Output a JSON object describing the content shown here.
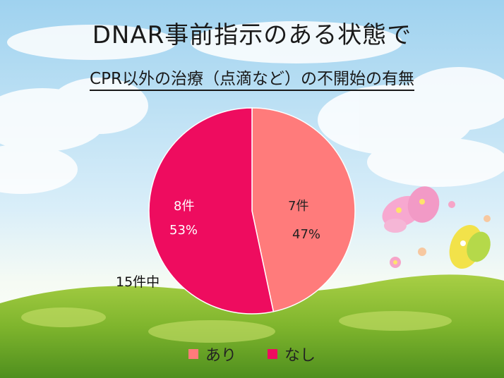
{
  "title": "DNAR事前指示のある状態で",
  "subtitle": "CPR以外の治療（点滴など）の不開始の有無",
  "total_note": "15件中",
  "colors": {
    "ari": "#ff7b7b",
    "nashi": "#ee0c5f"
  },
  "chart_data": {
    "type": "pie",
    "categories": [
      "あり",
      "なし"
    ],
    "values": [
      7,
      8
    ],
    "count_labels": [
      "7件",
      "8件"
    ],
    "percent_labels": [
      "47%",
      "53%"
    ],
    "start": "12 o'clock",
    "direction": "clockwise",
    "legend_position": "bottom"
  }
}
